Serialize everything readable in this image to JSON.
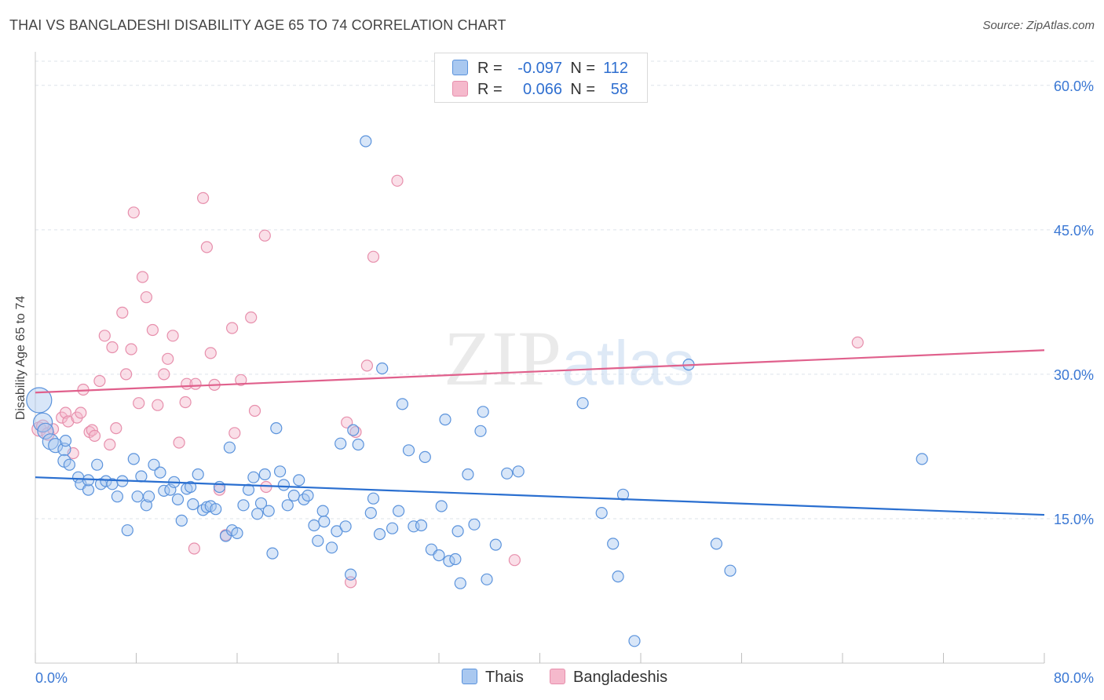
{
  "header": {
    "title": "THAI VS BANGLADESHI DISABILITY AGE 65 TO 74 CORRELATION CHART",
    "source": "Source: ZipAtlas.com"
  },
  "watermark": {
    "zip": "ZIP",
    "atlas": "atlas"
  },
  "legend_top": {
    "rows": [
      {
        "r_label": "R =",
        "r_value": "-0.097",
        "n_label": "N =",
        "n_value": "112",
        "color": "#a9c8f0"
      },
      {
        "r_label": "R =",
        "r_value": "0.066",
        "n_label": "N =",
        "n_value": "58",
        "color": "#f5b9cc"
      }
    ]
  },
  "legend_bottom": {
    "items": [
      {
        "label": "Thais",
        "color": "#a9c8f0"
      },
      {
        "label": "Bangladeshis",
        "color": "#f5b9cc"
      }
    ]
  },
  "colors": {
    "blue_fill": "#a9c8f0",
    "blue_stroke": "#5b93dc",
    "blue_line": "#2a6fd0",
    "pink_fill": "#f5b9cc",
    "pink_stroke": "#e78fac",
    "pink_line": "#e0608c",
    "axis_text": "#3b78d4",
    "grid": "#dde3ea"
  },
  "chart_data": {
    "type": "scatter",
    "title": "THAI VS BANGLADESHI DISABILITY AGE 65 TO 74 CORRELATION CHART",
    "xlabel": "",
    "ylabel": "Disability Age 65 to 74",
    "xlim": [
      0,
      80
    ],
    "ylim": [
      0,
      63
    ],
    "x_tick_labels": [
      "0.0%",
      "80.0%"
    ],
    "y_ticks": [
      15,
      30,
      45,
      60
    ],
    "y_tick_labels": [
      "15.0%",
      "30.0%",
      "45.0%",
      "60.0%"
    ],
    "series": [
      {
        "name": "Thais",
        "r": -0.097,
        "n": 112,
        "trend": {
          "x": [
            0,
            80
          ],
          "y": [
            19.3,
            15.4
          ]
        },
        "points": [
          [
            0.3,
            27.3,
            16
          ],
          [
            0.6,
            25.0,
            12
          ],
          [
            0.8,
            24.1,
            10
          ],
          [
            1.2,
            23.0,
            10
          ],
          [
            1.6,
            22.6,
            9
          ],
          [
            2.3,
            22.2,
            8
          ],
          [
            2.4,
            23.1,
            7
          ],
          [
            2.3,
            21.0,
            8
          ],
          [
            2.7,
            20.6,
            7
          ],
          [
            3.4,
            19.3,
            7
          ],
          [
            3.6,
            18.6,
            7
          ],
          [
            4.2,
            18.0,
            7
          ],
          [
            4.2,
            19.0,
            7
          ],
          [
            4.9,
            20.6,
            7
          ],
          [
            5.2,
            18.6,
            7
          ],
          [
            5.6,
            18.9,
            7
          ],
          [
            6.1,
            18.6,
            7
          ],
          [
            6.5,
            17.3,
            7
          ],
          [
            6.9,
            18.9,
            7
          ],
          [
            7.3,
            13.8,
            7
          ],
          [
            7.8,
            21.2,
            7
          ],
          [
            8.1,
            17.3,
            7
          ],
          [
            8.4,
            19.4,
            7
          ],
          [
            8.8,
            16.4,
            7
          ],
          [
            9.0,
            17.3,
            7
          ],
          [
            9.4,
            20.6,
            7
          ],
          [
            9.9,
            19.8,
            7
          ],
          [
            10.2,
            17.9,
            7
          ],
          [
            10.7,
            18.0,
            7
          ],
          [
            11.0,
            18.8,
            7
          ],
          [
            11.3,
            17.0,
            7
          ],
          [
            11.6,
            14.8,
            7
          ],
          [
            12.0,
            18.1,
            7
          ],
          [
            12.3,
            18.3,
            7
          ],
          [
            12.5,
            16.5,
            7
          ],
          [
            12.9,
            19.6,
            7
          ],
          [
            13.3,
            15.9,
            7
          ],
          [
            13.6,
            16.2,
            7
          ],
          [
            13.9,
            16.3,
            7
          ],
          [
            14.3,
            16.0,
            7
          ],
          [
            14.6,
            18.3,
            7
          ],
          [
            15.1,
            13.2,
            7
          ],
          [
            15.4,
            22.4,
            7
          ],
          [
            15.6,
            13.8,
            7
          ],
          [
            16.0,
            13.5,
            7
          ],
          [
            16.5,
            16.4,
            7
          ],
          [
            16.9,
            18.0,
            7
          ],
          [
            17.3,
            19.3,
            7
          ],
          [
            17.6,
            15.5,
            7
          ],
          [
            17.9,
            16.6,
            7
          ],
          [
            18.2,
            19.6,
            7
          ],
          [
            18.5,
            15.8,
            7
          ],
          [
            18.8,
            11.4,
            7
          ],
          [
            19.1,
            24.4,
            7
          ],
          [
            19.4,
            19.9,
            7
          ],
          [
            19.7,
            18.5,
            7
          ],
          [
            20.0,
            16.4,
            7
          ],
          [
            20.5,
            17.4,
            7
          ],
          [
            20.9,
            19.0,
            7
          ],
          [
            21.3,
            17.0,
            7
          ],
          [
            21.6,
            17.4,
            7
          ],
          [
            22.1,
            14.3,
            7
          ],
          [
            22.4,
            12.7,
            7
          ],
          [
            22.8,
            15.8,
            7
          ],
          [
            22.9,
            14.7,
            7
          ],
          [
            23.5,
            12.0,
            7
          ],
          [
            23.9,
            13.7,
            7
          ],
          [
            24.2,
            22.8,
            7
          ],
          [
            24.6,
            14.2,
            7
          ],
          [
            25.0,
            9.2,
            7
          ],
          [
            25.2,
            24.2,
            7
          ],
          [
            25.6,
            22.7,
            7
          ],
          [
            26.2,
            54.2,
            7
          ],
          [
            26.6,
            15.6,
            7
          ],
          [
            26.8,
            17.1,
            7
          ],
          [
            27.3,
            13.4,
            7
          ],
          [
            27.5,
            30.6,
            7
          ],
          [
            28.3,
            14.0,
            7
          ],
          [
            28.8,
            15.8,
            7
          ],
          [
            29.1,
            26.9,
            7
          ],
          [
            29.6,
            22.1,
            7
          ],
          [
            30.0,
            14.2,
            7
          ],
          [
            30.6,
            14.3,
            7
          ],
          [
            30.9,
            21.4,
            7
          ],
          [
            31.4,
            11.8,
            7
          ],
          [
            32.0,
            11.2,
            7
          ],
          [
            32.2,
            16.3,
            7
          ],
          [
            32.5,
            25.3,
            7
          ],
          [
            32.8,
            10.6,
            7
          ],
          [
            33.3,
            10.8,
            7
          ],
          [
            33.5,
            13.7,
            7
          ],
          [
            33.7,
            8.3,
            7
          ],
          [
            34.3,
            19.6,
            7
          ],
          [
            34.8,
            14.4,
            7
          ],
          [
            35.3,
            24.1,
            7
          ],
          [
            35.5,
            26.1,
            7
          ],
          [
            35.8,
            8.7,
            7
          ],
          [
            36.5,
            12.3,
            7
          ],
          [
            37.4,
            19.7,
            7
          ],
          [
            38.3,
            19.9,
            7
          ],
          [
            43.4,
            27.0,
            7
          ],
          [
            44.9,
            15.6,
            7
          ],
          [
            45.8,
            12.4,
            7
          ],
          [
            46.2,
            9.0,
            7
          ],
          [
            46.6,
            17.5,
            7
          ],
          [
            47.5,
            2.3,
            7
          ],
          [
            51.8,
            31.0,
            7
          ],
          [
            54.0,
            12.4,
            7
          ],
          [
            55.1,
            9.6,
            7
          ],
          [
            70.3,
            21.2,
            7
          ]
        ]
      },
      {
        "name": "Bangladeshis",
        "r": 0.066,
        "n": 58,
        "trend": {
          "x": [
            0,
            80
          ],
          "y": [
            28.1,
            32.5
          ]
        },
        "points": [
          [
            0.3,
            24.3,
            9
          ],
          [
            0.6,
            24.6,
            8
          ],
          [
            1.0,
            23.8,
            8
          ],
          [
            1.4,
            24.3,
            7
          ],
          [
            2.1,
            25.5,
            7
          ],
          [
            2.4,
            26.0,
            7
          ],
          [
            2.6,
            25.1,
            7
          ],
          [
            3.0,
            21.8,
            7
          ],
          [
            3.3,
            25.5,
            7
          ],
          [
            3.6,
            26.0,
            7
          ],
          [
            3.8,
            28.4,
            7
          ],
          [
            4.3,
            24.0,
            7
          ],
          [
            4.5,
            24.2,
            7
          ],
          [
            4.7,
            23.6,
            7
          ],
          [
            5.1,
            29.3,
            7
          ],
          [
            5.5,
            34.0,
            7
          ],
          [
            5.9,
            22.7,
            7
          ],
          [
            6.1,
            32.8,
            7
          ],
          [
            6.4,
            24.4,
            7
          ],
          [
            6.9,
            36.4,
            7
          ],
          [
            7.2,
            30.0,
            7
          ],
          [
            7.6,
            32.6,
            7
          ],
          [
            7.8,
            46.8,
            7
          ],
          [
            8.2,
            27.0,
            7
          ],
          [
            8.5,
            40.1,
            7
          ],
          [
            8.8,
            38.0,
            7
          ],
          [
            9.3,
            34.6,
            7
          ],
          [
            9.7,
            26.8,
            7
          ],
          [
            10.2,
            30.0,
            7
          ],
          [
            10.5,
            31.6,
            7
          ],
          [
            10.9,
            34.0,
            7
          ],
          [
            11.4,
            22.9,
            7
          ],
          [
            11.9,
            27.1,
            7
          ],
          [
            12.0,
            29.0,
            7
          ],
          [
            12.7,
            29.0,
            7
          ],
          [
            12.6,
            11.9,
            7
          ],
          [
            13.3,
            48.3,
            7
          ],
          [
            13.6,
            43.2,
            7
          ],
          [
            13.9,
            32.2,
            7
          ],
          [
            14.2,
            28.9,
            7
          ],
          [
            14.6,
            18.0,
            7
          ],
          [
            15.1,
            13.3,
            7
          ],
          [
            15.6,
            34.8,
            7
          ],
          [
            15.8,
            23.9,
            7
          ],
          [
            16.3,
            29.4,
            7
          ],
          [
            17.1,
            35.9,
            7
          ],
          [
            17.4,
            26.2,
            7
          ],
          [
            18.2,
            44.4,
            7
          ],
          [
            18.3,
            18.3,
            7
          ],
          [
            24.7,
            25.0,
            7
          ],
          [
            25.0,
            8.4,
            7
          ],
          [
            25.4,
            24.0,
            7
          ],
          [
            26.3,
            30.9,
            7
          ],
          [
            26.8,
            42.2,
            7
          ],
          [
            28.7,
            50.1,
            7
          ],
          [
            38.0,
            10.7,
            7
          ],
          [
            65.2,
            33.3,
            7
          ]
        ]
      }
    ]
  }
}
